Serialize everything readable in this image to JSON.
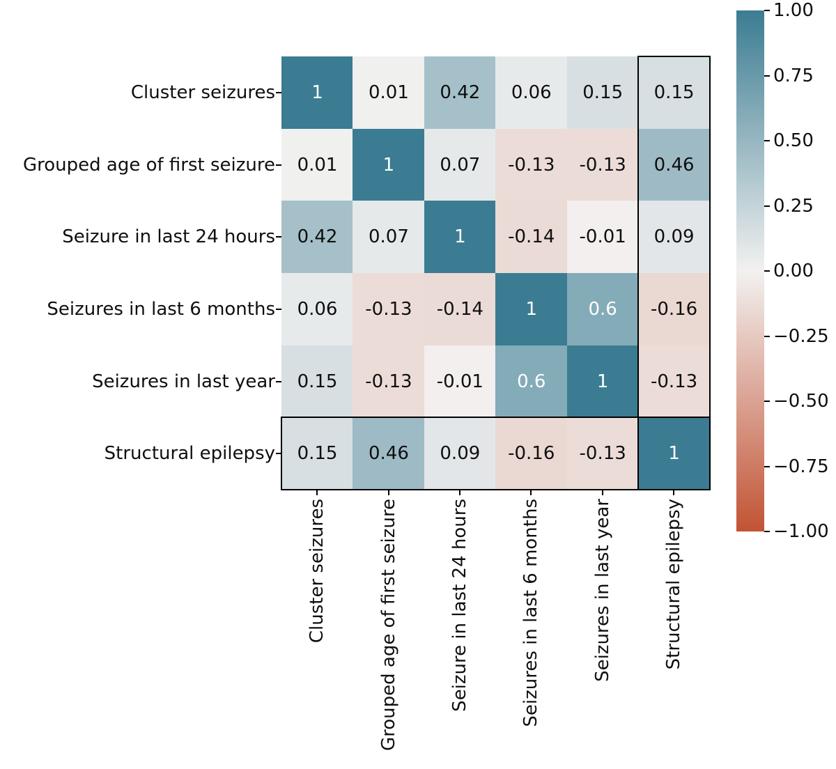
{
  "chart_data": {
    "type": "heatmap",
    "categories": [
      "Cluster seizures",
      "Grouped age of first seizure",
      "Seizure in last 24 hours",
      "Seizures in last 6 months",
      "Seizures in last year",
      "Structural epilepsy"
    ],
    "x_tick_labels": [
      "Cluster seizures",
      "Grouped age of first seizure",
      "Seizure in last 24 hours",
      "Seizures in last 6 months",
      "Seizures in last year",
      "Structural epilepsy"
    ],
    "y_tick_labels": [
      "Cluster seizures",
      "Grouped age of first seizure",
      "Seizure in last 24 hours",
      "Seizures in last 6 months",
      "Seizures in last year",
      "Structural epilepsy"
    ],
    "matrix": [
      [
        1,
        0.01,
        0.42,
        0.06,
        0.15,
        0.15
      ],
      [
        0.01,
        1,
        0.07,
        -0.13,
        -0.13,
        0.46
      ],
      [
        0.42,
        0.07,
        1,
        -0.14,
        -0.01,
        0.09
      ],
      [
        0.06,
        -0.13,
        -0.14,
        1,
        0.6,
        -0.16
      ],
      [
        0.15,
        -0.13,
        -0.01,
        0.6,
        1,
        -0.13
      ],
      [
        0.15,
        0.46,
        0.09,
        -0.16,
        -0.13,
        1
      ]
    ],
    "colorbar": {
      "position": "right",
      "vmin": -1,
      "vmax": 1,
      "tick_labels": [
        "1.00",
        "0.75",
        "0.50",
        "0.25",
        "0.00",
        "−0.25",
        "−0.50",
        "−0.75",
        "−1.00"
      ]
    },
    "colors": {
      "max_color": "#3b7c92",
      "center_color": "#f2f1f0",
      "min_color": "#c25334",
      "annot_dark": "#0f0f0f",
      "annot_light": "#ffffff",
      "tick_color": "#000000",
      "highlight_outline": "#000000",
      "background": "#ffffff"
    },
    "highlights": [
      {
        "type": "column",
        "label": "Structural epilepsy",
        "index": 5
      },
      {
        "type": "row",
        "label": "Structural epilepsy",
        "index": 5
      }
    ]
  }
}
